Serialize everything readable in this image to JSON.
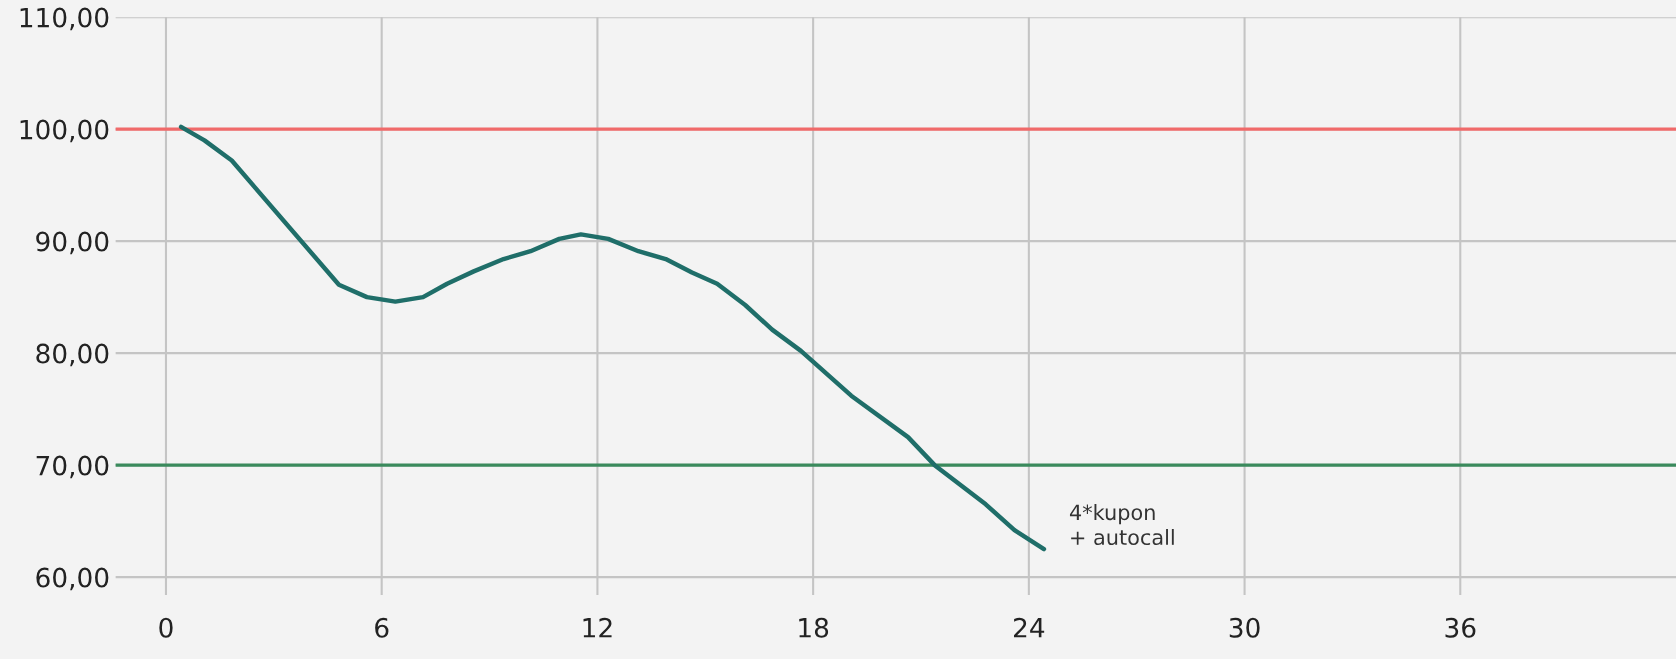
{
  "chart_data": {
    "type": "line",
    "x": [
      0.42,
      1.07,
      1.83,
      4.81,
      5.59,
      6.38,
      7.15,
      7.82,
      8.56,
      9.39,
      10.14,
      10.94,
      11.54,
      12.3,
      13.14,
      13.9,
      14.63,
      15.33,
      16.11,
      16.86,
      17.66,
      19.06,
      20.64,
      21.38,
      22.8,
      23.6,
      24.42
    ],
    "series": [
      {
        "color": "#1f6e69",
        "values": [
          100.2,
          99.0,
          97.2,
          86.1,
          85.0,
          84.6,
          85.0,
          86.2,
          87.3,
          88.4,
          89.1,
          90.2,
          90.6,
          90.2,
          89.1,
          88.4,
          87.2,
          86.2,
          84.3,
          82.1,
          80.2,
          76.2,
          72.5,
          70.0,
          66.5,
          64.2,
          62.5
        ]
      }
    ],
    "xlim": [
      -1.4,
      42
    ],
    "xticks": [
      0,
      6,
      12,
      18,
      24,
      30,
      36
    ],
    "ylim": [
      58.4,
      110
    ],
    "yticks": [
      {
        "value": 60,
        "label": "60,00"
      },
      {
        "value": 70,
        "label": "70,00"
      },
      {
        "value": 80,
        "label": "80,00"
      },
      {
        "value": 90,
        "label": "90,00"
      },
      {
        "value": 100,
        "label": "100,00"
      },
      {
        "value": 110,
        "label": "110,00"
      }
    ],
    "ref_lines": [
      {
        "axis": "y",
        "value": 100,
        "color": "#f06a6a"
      },
      {
        "axis": "y",
        "value": 70,
        "color": "#3a8a5c"
      }
    ],
    "annotations": [
      {
        "text": "4*kupon\n+ autocall",
        "x": 24.42,
        "y": 62.5
      }
    ],
    "grid": true,
    "marker": "none",
    "line_style": "solid",
    "legend": false
  }
}
